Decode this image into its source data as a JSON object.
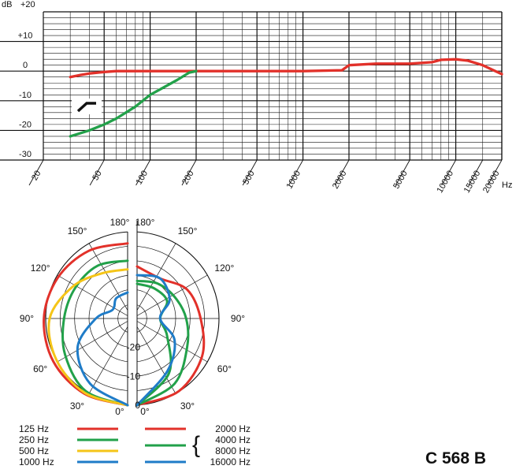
{
  "frequency_response": {
    "ylabel": "dB",
    "y_ticks": [
      "+20",
      "+10",
      "0",
      "-10",
      "-20",
      "-30"
    ],
    "x_ticks": [
      "20",
      "50",
      "100",
      "200",
      "500",
      "1000",
      "2000",
      "5000",
      "10000",
      "15000",
      "20000"
    ],
    "xlabel": "Hz"
  },
  "polar": {
    "angle_labels_left": [
      "180°",
      "150°",
      "120°",
      "90°",
      "60°",
      "30°",
      "0°"
    ],
    "angle_labels_right": [
      "180°",
      "150°",
      "120°",
      "90°",
      "60°",
      "30°",
      "0°"
    ],
    "radial_labels": [
      "-20",
      "-10",
      "0"
    ]
  },
  "legend": {
    "left": [
      {
        "label": "125 Hz",
        "color": "#e2312a"
      },
      {
        "label": "250 Hz",
        "color": "#22a14a"
      },
      {
        "label": "500 Hz",
        "color": "#f5c518"
      },
      {
        "label": "1000 Hz",
        "color": "#1f7cc8"
      }
    ],
    "right": [
      {
        "label": "2000 Hz",
        "color": "#e2312a"
      },
      {
        "label": "4000 Hz",
        "color": "#22a14a"
      },
      {
        "label": "8000 Hz",
        "color": "#22a14a"
      },
      {
        "label": "16000 Hz",
        "color": "#1f7cc8"
      }
    ],
    "bracket": "{"
  },
  "model": "C 568 B",
  "chart_data": [
    {
      "type": "line",
      "ylabel": "dB",
      "xlabel": "Hz",
      "x_scale": "log",
      "xlim": [
        20,
        20000
      ],
      "ylim": [
        -30,
        20
      ],
      "grid": true,
      "series": [
        {
          "color": "#e2312a",
          "x": [
            30,
            35,
            40,
            50,
            60,
            80,
            100,
            200,
            500,
            1000,
            1800,
            2000,
            3000,
            5000,
            7000,
            8000,
            10000,
            12000,
            15000,
            20000
          ],
          "y": [
            -2,
            -1.3,
            -0.8,
            -0.3,
            0,
            0,
            0,
            0,
            0,
            0,
            0.3,
            2,
            2.5,
            2.5,
            3,
            3.8,
            4,
            3.5,
            2,
            -1
          ]
        },
        {
          "color": "#22a14a",
          "x": [
            30,
            40,
            50,
            60,
            80,
            100,
            150,
            180,
            200
          ],
          "y": [
            -22,
            -20,
            -18,
            -16,
            -12,
            -8,
            -3,
            -0.5,
            0
          ]
        }
      ]
    },
    {
      "type": "polar",
      "radial_range_db": [
        -30,
        0
      ],
      "radial_ticks": [
        -20,
        -10,
        0
      ],
      "halves": [
        {
          "side": "left",
          "series": [
            {
              "name": "125 Hz",
              "color": "#e2312a",
              "angles": [
                0,
                30,
                60,
                90,
                120,
                150,
                180
              ],
              "db": [
                0,
                0,
                -0.3,
                -1,
                -2,
                -3,
                -4
              ]
            },
            {
              "name": "250 Hz",
              "color": "#22a14a",
              "angles": [
                0,
                30,
                60,
                90,
                120,
                150,
                180
              ],
              "db": [
                0,
                -1,
                -5,
                -8,
                -9,
                -9,
                -10
              ]
            },
            {
              "name": "500 Hz",
              "color": "#f5c518",
              "angles": [
                0,
                30,
                60,
                90,
                120,
                150,
                180
              ],
              "db": [
                0,
                -0.3,
                -1.5,
                -3,
                -8,
                -12,
                -13
              ]
            },
            {
              "name": "1000 Hz",
              "color": "#1f7cc8",
              "angles": [
                0,
                30,
                60,
                90,
                120,
                150,
                180
              ],
              "db": [
                0,
                -4,
                -10,
                -19,
                -24,
                -22,
                -21
              ]
            }
          ]
        },
        {
          "side": "right",
          "series": [
            {
              "name": "2000 Hz",
              "color": "#e2312a",
              "angles": [
                0,
                30,
                60,
                90,
                120,
                150,
                180
              ],
              "db": [
                0,
                -1,
                -4,
                -8,
                -10,
                -14,
                -12
              ]
            },
            {
              "name": "4000 Hz",
              "color": "#22a14a",
              "angles": [
                0,
                30,
                60,
                90,
                120,
                150,
                180
              ],
              "db": [
                0,
                -4,
                -10,
                -13,
                -15,
                -16,
                -17
              ]
            },
            {
              "name": "8000 Hz",
              "color": "#22a14a",
              "angles": [
                0,
                30,
                60,
                90,
                120,
                150,
                180
              ],
              "db": [
                0,
                -8,
                -18,
                -22,
                -18,
                -18,
                -18
              ]
            },
            {
              "name": "16000 Hz",
              "color": "#1f7cc8",
              "angles": [
                0,
                30,
                60,
                90,
                120,
                150,
                180
              ],
              "db": [
                0,
                -9,
                -15,
                -22,
                -17,
                -14,
                -15
              ]
            }
          ]
        }
      ]
    }
  ]
}
